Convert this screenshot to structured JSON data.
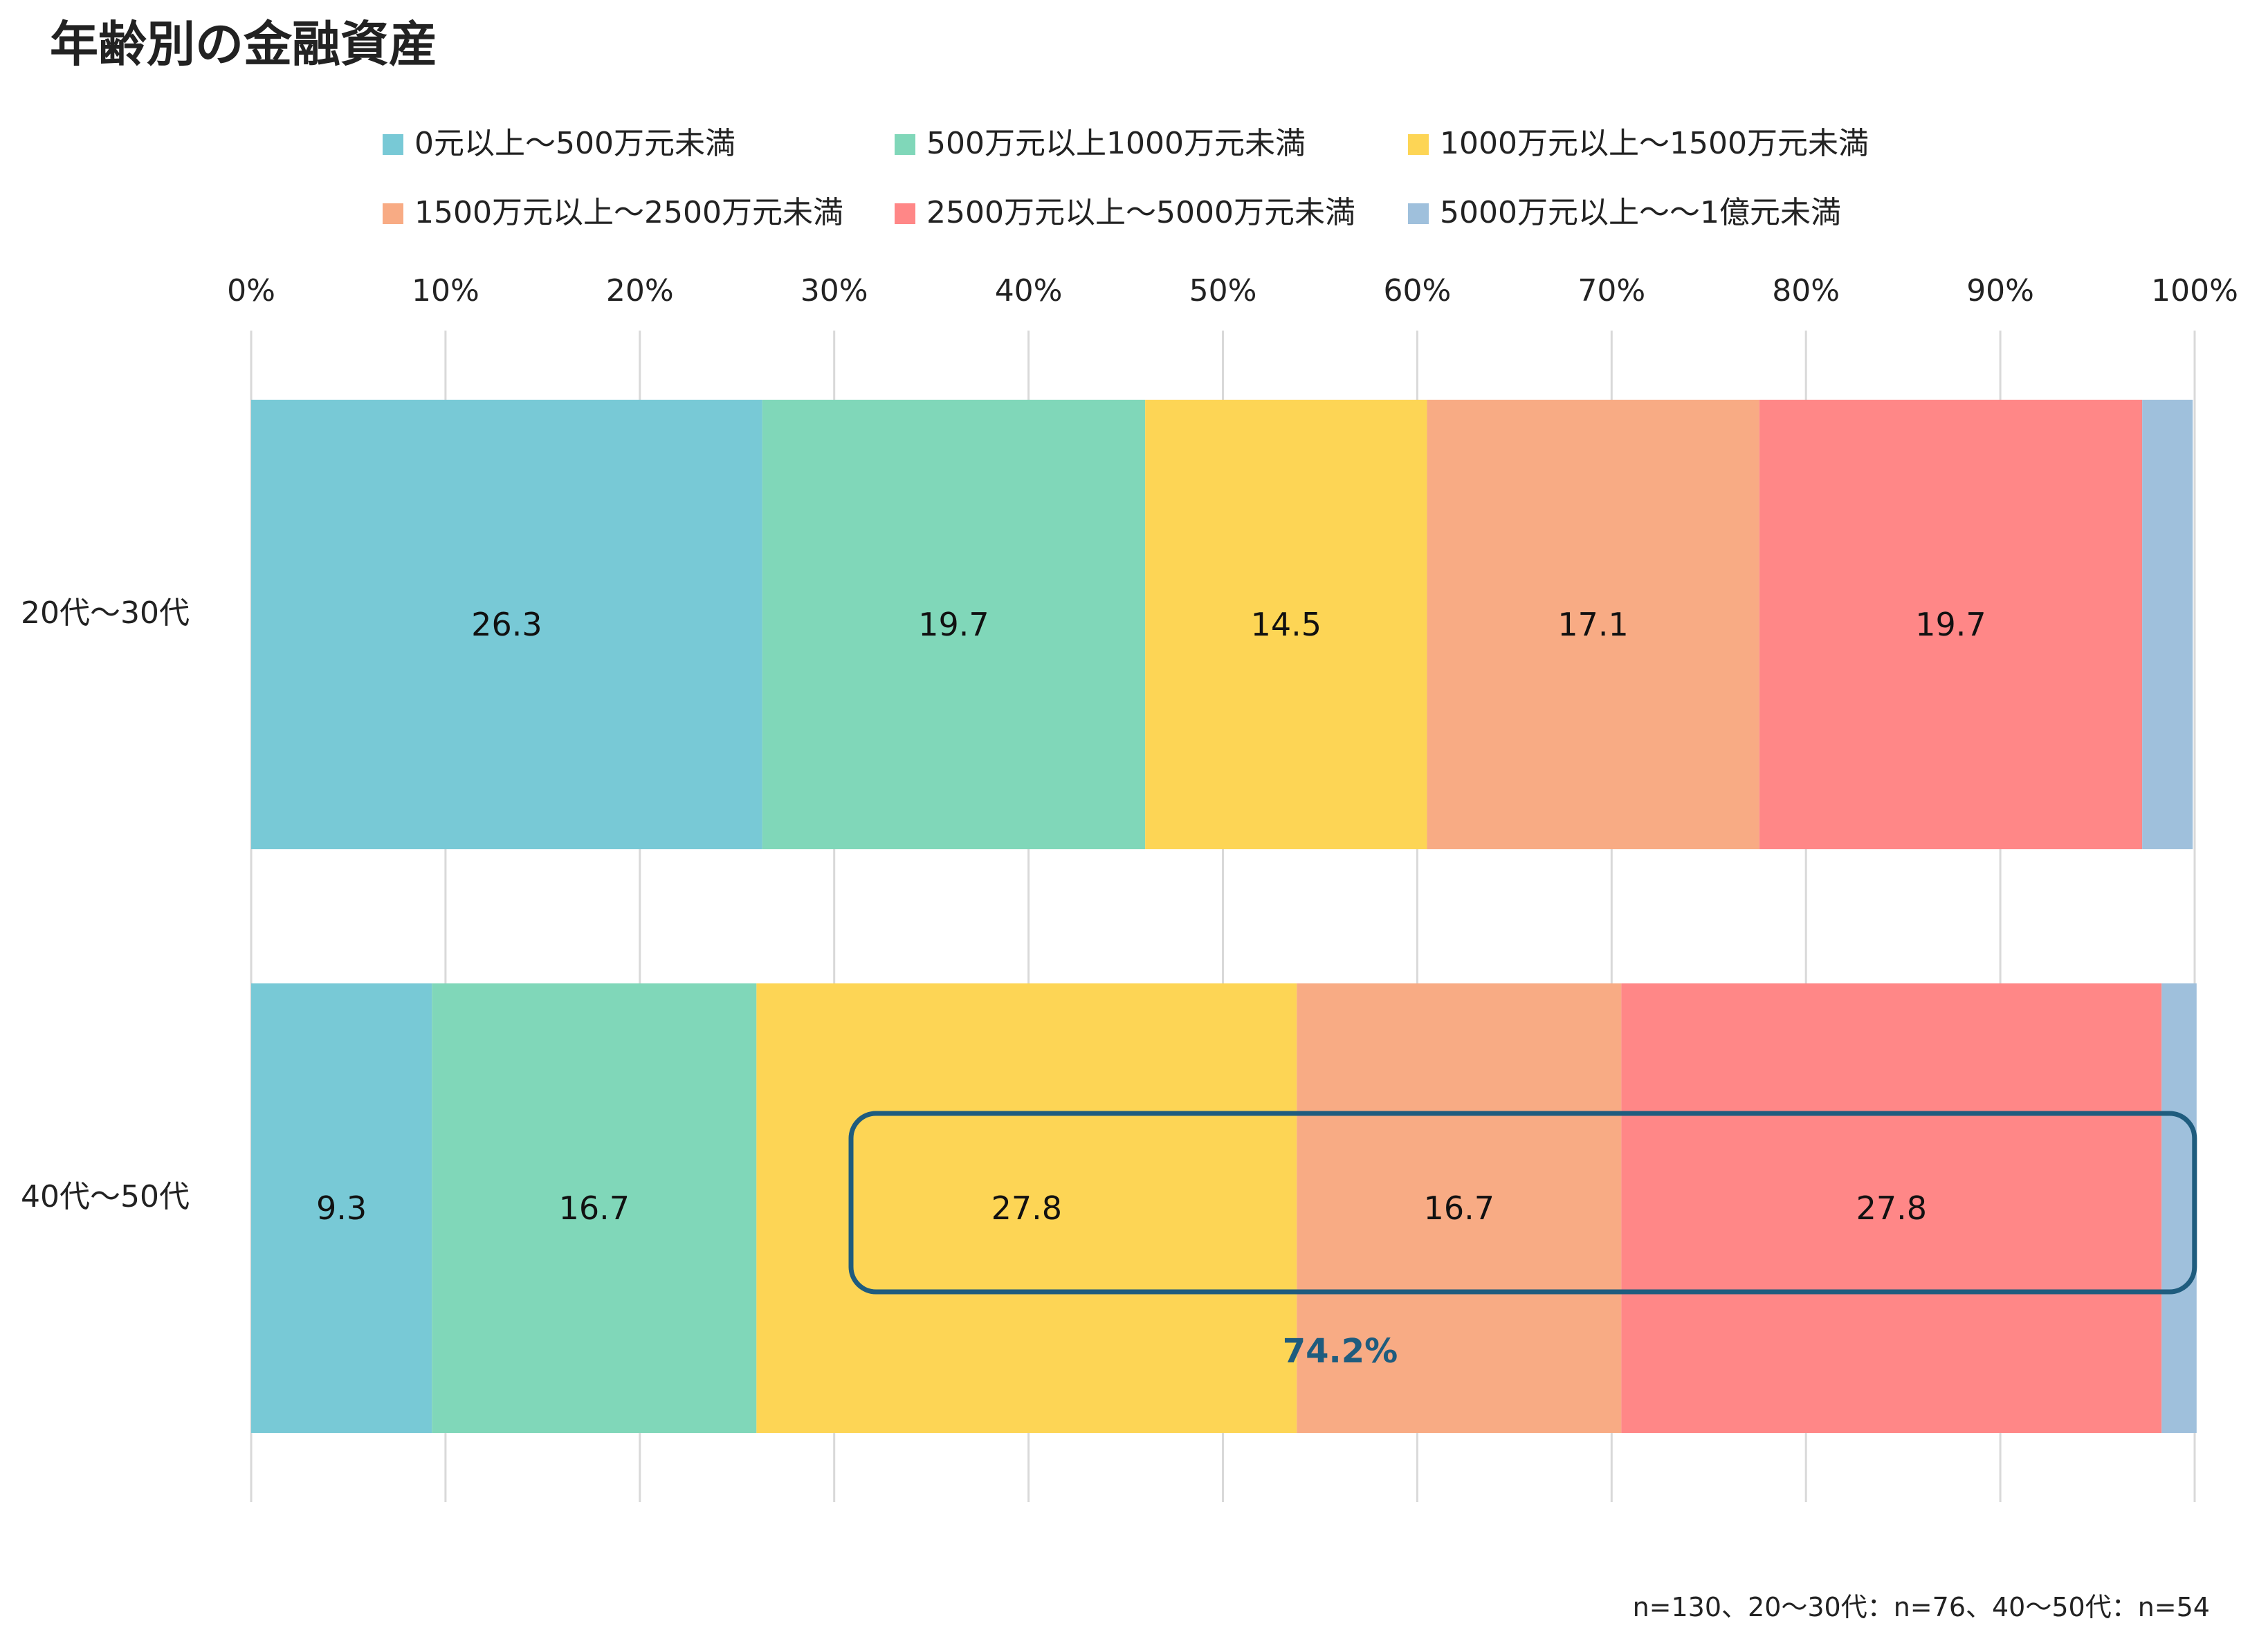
{
  "chart_data": {
    "type": "bar",
    "orientation": "horizontal",
    "stacked": true,
    "title": "年齢別の金融資産",
    "xlim": [
      0,
      100
    ],
    "x_ticks": [
      "0%",
      "10%",
      "20%",
      "30%",
      "40%",
      "50%",
      "60%",
      "70%",
      "80%",
      "90%",
      "100%"
    ],
    "grid": true,
    "legend_position": "top",
    "categories": [
      "20代〜30代",
      "40代〜50代"
    ],
    "series": [
      {
        "name": "0元以上〜500万元未満",
        "color": "#78C9D6",
        "values": [
          26.3,
          9.3
        ]
      },
      {
        "name": "500万元以上1000万元未満",
        "color": "#80D7B9",
        "values": [
          19.7,
          16.7
        ]
      },
      {
        "name": "1000万元以上〜1500万元未満",
        "color": "#FDD555",
        "values": [
          14.5,
          27.8
        ]
      },
      {
        "name": "1500万元以上〜2500万元未満",
        "color": "#F8AB84",
        "values": [
          17.1,
          16.7
        ]
      },
      {
        "name": "2500万元以上〜5000万元未満",
        "color": "#FF8787",
        "values": [
          19.7,
          27.8
        ]
      },
      {
        "name": "5000万元以上〜〜1億元未満",
        "color": "#9FC0DC",
        "values": [
          2.6,
          1.8
        ]
      }
    ],
    "data_labels": [
      [
        "26.3",
        "19.7",
        "14.5",
        "17.1",
        "19.7",
        ""
      ],
      [
        "9.3",
        "16.7",
        "27.8",
        "16.7",
        "27.8",
        ""
      ]
    ],
    "annotation": {
      "text": "74.2%",
      "category_index": 1,
      "from_series": 2,
      "to_series": 5,
      "color": "#1F5C7E"
    },
    "footnote": "n=130、20〜30代：n=76、40〜50代：n=54"
  }
}
